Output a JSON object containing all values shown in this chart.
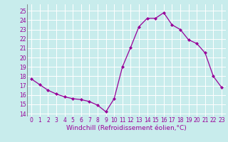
{
  "x": [
    0,
    1,
    2,
    3,
    4,
    5,
    6,
    7,
    8,
    9,
    10,
    11,
    12,
    13,
    14,
    15,
    16,
    17,
    18,
    19,
    20,
    21,
    22,
    23
  ],
  "y": [
    17.7,
    17.1,
    16.5,
    16.1,
    15.8,
    15.6,
    15.5,
    15.3,
    14.9,
    14.2,
    15.6,
    19.0,
    21.1,
    23.3,
    24.2,
    24.2,
    24.8,
    23.5,
    23.0,
    21.9,
    21.5,
    20.5,
    18.0,
    16.8
  ],
  "line_color": "#990099",
  "marker": "D",
  "marker_size": 2.0,
  "bg_color": "#c8ecec",
  "grid_color": "#ffffff",
  "xlabel": "Windchill (Refroidissement éolien,°C)",
  "xlabel_color": "#990099",
  "ylabel_ticks": [
    14,
    15,
    16,
    17,
    18,
    19,
    20,
    21,
    22,
    23,
    24,
    25
  ],
  "xtick_labels": [
    "0",
    "1",
    "2",
    "3",
    "4",
    "5",
    "6",
    "7",
    "8",
    "9",
    "1011",
    "1213",
    "1415",
    "1617",
    "1819",
    "2021",
    "2223"
  ],
  "xlim": [
    -0.5,
    23.5
  ],
  "ylim": [
    13.7,
    25.7
  ],
  "tick_color": "#990099",
  "tick_fontsize": 5.5,
  "xlabel_fontsize": 6.5,
  "linewidth": 0.9
}
